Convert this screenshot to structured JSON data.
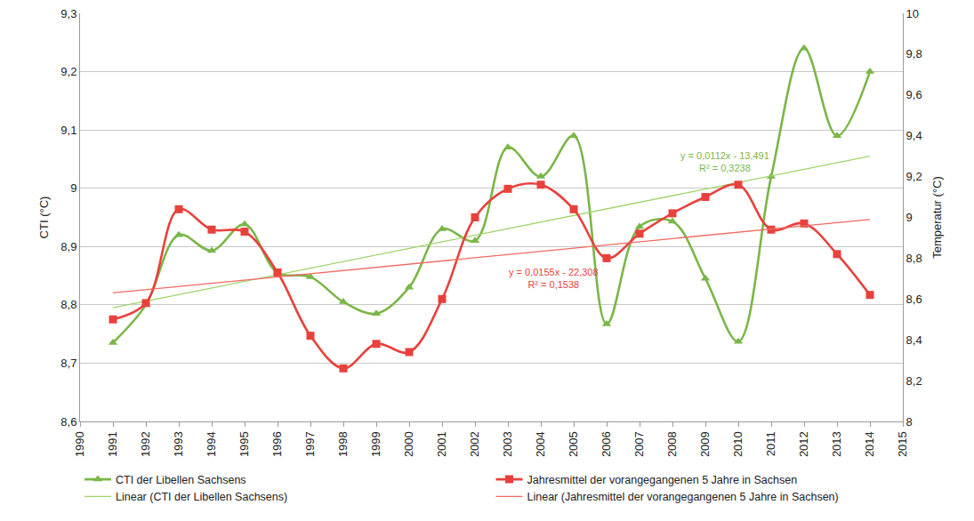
{
  "chart_data": {
    "type": "line",
    "x_label": null,
    "y_label": "CTI (°C)",
    "y2_label": "Temperatur (°C)",
    "x": [
      1991,
      1992,
      1993,
      1994,
      1995,
      1996,
      1997,
      1998,
      1999,
      2000,
      2001,
      2002,
      2003,
      2004,
      2005,
      2006,
      2007,
      2008,
      2009,
      2010,
      2011,
      2012,
      2013,
      2014
    ],
    "xlim": [
      1990,
      2015
    ],
    "xticks": [
      1990,
      1991,
      1992,
      1993,
      1994,
      1995,
      1996,
      1997,
      1998,
      1999,
      2000,
      2001,
      2002,
      2003,
      2004,
      2005,
      2006,
      2007,
      2008,
      2009,
      2010,
      2011,
      2012,
      2013,
      2014,
      2015
    ],
    "ylim": [
      8.6,
      9.3
    ],
    "yticks": [
      {
        "value": 8.6,
        "label": "8,6"
      },
      {
        "value": 8.7,
        "label": "8,7"
      },
      {
        "value": 8.8,
        "label": "8,8"
      },
      {
        "value": 8.9,
        "label": "8,9"
      },
      {
        "value": 9,
        "label": "9"
      },
      {
        "value": 9.1,
        "label": "9,1"
      },
      {
        "value": 9.2,
        "label": "9,2"
      },
      {
        "value": 9.3,
        "label": "9,3"
      }
    ],
    "y2lim": [
      8,
      10
    ],
    "y2ticks": [
      8,
      {
        "value": 8.2,
        "label": "8,2"
      },
      {
        "value": 8.4,
        "label": "8,4"
      },
      {
        "value": 8.6,
        "label": "8,6"
      },
      {
        "value": 8.8,
        "label": "8,8"
      },
      9,
      {
        "value": 9.2,
        "label": "9,2"
      },
      {
        "value": 9.4,
        "label": "9,4"
      },
      {
        "value": 9.6,
        "label": "9,6"
      },
      {
        "value": 9.8,
        "label": "9,8"
      },
      10
    ],
    "grid": true,
    "legend": "bottom",
    "series": [
      {
        "name": "CTI der Libellen Sachsens",
        "color": "#7ab648",
        "marker": "triangle",
        "line_style": "smooth",
        "values": [
          8.735,
          8.8,
          8.92,
          8.893,
          8.938,
          8.855,
          8.848,
          8.805,
          8.785,
          8.83,
          8.93,
          8.91,
          9.07,
          9.02,
          9.09,
          8.767,
          8.934,
          8.943,
          8.845,
          8.737,
          9.02,
          9.24,
          9.09,
          9.2
        ]
      },
      {
        "name": "Jahresmittel der vorangegangenen 5 Jahre in Sachsen",
        "color": "#e8413c",
        "marker": "square",
        "line_style": "smooth",
        "axis": "y2",
        "values": [
          8.5,
          8.58,
          9.04,
          8.94,
          8.93,
          8.73,
          8.42,
          8.26,
          8.38,
          8.34,
          8.6,
          9.0,
          9.14,
          9.16,
          9.04,
          8.8,
          8.92,
          9.02,
          9.1,
          9.16,
          8.94,
          8.97,
          8.82,
          8.62
        ]
      },
      {
        "name": "Linear (CTI der Libellen Sachsens)",
        "color": "#9fd46a",
        "marker": "none",
        "line_style": "thin",
        "x": [
          1991,
          2014
        ],
        "values": [
          8.795,
          9.055
        ]
      },
      {
        "name": "Linear (Jahresmittel der vorangegangenen 5 Jahre in Sachsen)",
        "color": "#f06a62",
        "marker": "none",
        "line_style": "thin",
        "axis": "y2",
        "x": [
          1991,
          2014
        ],
        "values": [
          8.63,
          8.99
        ]
      }
    ],
    "annotations": [
      {
        "lines": [
          "y = 0,0112x - 13,491",
          "R² = 0,3238"
        ],
        "color": "#7ab648"
      },
      {
        "lines": [
          "y = 0,0155x - 22,308",
          "R² = 0,1538"
        ],
        "color": "#e8413c"
      }
    ]
  }
}
